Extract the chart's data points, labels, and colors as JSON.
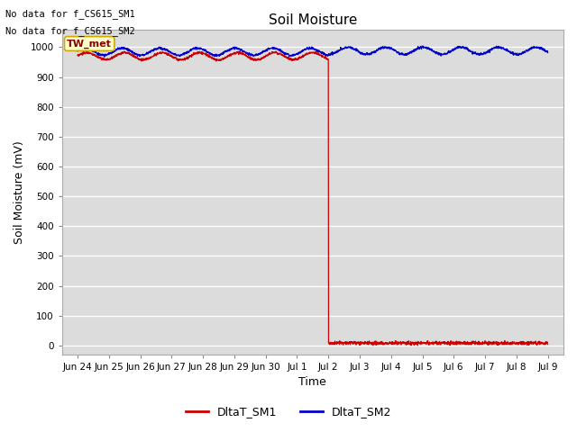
{
  "title": "Soil Moisture",
  "xlabel": "Time",
  "ylabel": "Soil Moisture (mV)",
  "ylim": [
    -30,
    1060
  ],
  "xlim": [
    -0.5,
    15.5
  ],
  "background_color": "#dcdcdc",
  "grid_color": "#ffffff",
  "annotations": [
    "No data for f_CS615_SM1",
    "No data for f_CS615_SM2"
  ],
  "legend_box_label": "TW_met",
  "legend_box_facecolor": "#ffffcc",
  "legend_box_edgecolor": "#ccaa00",
  "sm1_color": "#cc0000",
  "sm2_color": "#0000cc",
  "sm1_label": "DltaT_SM1",
  "sm2_label": "DltaT_SM2",
  "x_tick_labels": [
    "Jun 24",
    "Jun 25",
    "Jun 26",
    "Jun 27",
    "Jun 28",
    "Jun 29",
    "Jun 30",
    "Jul 1",
    "Jul 2",
    "Jul 3",
    "Jul 4",
    "Jul 5",
    "Jul 6",
    "Jul 7",
    "Jul 8",
    "Jul 9"
  ],
  "y_ticks": [
    0,
    100,
    200,
    300,
    400,
    500,
    600,
    700,
    800,
    900,
    1000
  ],
  "sm1_pre_mean": 970,
  "sm1_post_mean": 8,
  "sm2_mean": 985,
  "sm2_amplitude": 12,
  "sm1_pre_amplitude": 12,
  "wave_period": 1.2,
  "drop_day": 8.0,
  "num_points": 2000,
  "figsize": [
    6.4,
    4.8
  ],
  "dpi": 100
}
